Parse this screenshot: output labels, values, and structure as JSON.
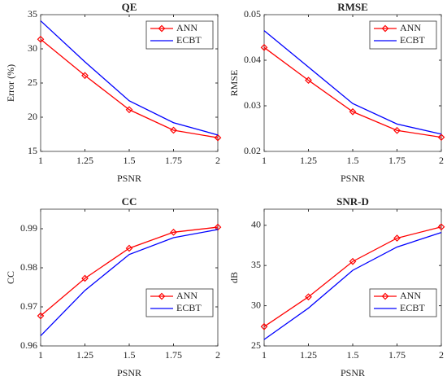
{
  "chart_data": [
    {
      "type": "line",
      "title": "QE",
      "xlabel": "PSNR",
      "ylabel": "Error (%)",
      "x": [
        1,
        1.25,
        1.5,
        1.75,
        2
      ],
      "xlim": [
        1,
        2
      ],
      "xticks": [
        1,
        1.25,
        1.5,
        1.75,
        2
      ],
      "ylim": [
        15,
        35
      ],
      "yticks": [
        15,
        20,
        25,
        30,
        35
      ],
      "legend": "northeast",
      "series": [
        {
          "name": "ANN",
          "color": "#ff0000",
          "marker": "diamond",
          "values": [
            31.4,
            26.1,
            21.1,
            18.1,
            17.0
          ]
        },
        {
          "name": "ECBT",
          "color": "#0000ff",
          "values": [
            34.1,
            28.1,
            22.4,
            19.2,
            17.4
          ]
        }
      ]
    },
    {
      "type": "line",
      "title": "RMSE",
      "xlabel": "PSNR",
      "ylabel": "RMSE",
      "x": [
        1,
        1.25,
        1.5,
        1.75,
        2
      ],
      "xlim": [
        1,
        2
      ],
      "xticks": [
        1,
        1.25,
        1.5,
        1.75,
        2
      ],
      "ylim": [
        0.02,
        0.05
      ],
      "yticks": [
        0.02,
        0.03,
        0.04,
        0.05
      ],
      "legend": "northeast",
      "series": [
        {
          "name": "ANN",
          "color": "#ff0000",
          "marker": "diamond",
          "values": [
            0.0428,
            0.0356,
            0.0287,
            0.0246,
            0.0231
          ]
        },
        {
          "name": "ECBT",
          "color": "#0000ff",
          "values": [
            0.0465,
            0.0385,
            0.0305,
            0.026,
            0.0238
          ]
        }
      ]
    },
    {
      "type": "line",
      "title": "CC",
      "xlabel": "PSNR",
      "ylabel": "CC",
      "x": [
        1,
        1.25,
        1.5,
        1.75,
        2
      ],
      "xlim": [
        1,
        2
      ],
      "xticks": [
        1,
        1.25,
        1.5,
        1.75,
        2
      ],
      "ylim": [
        0.96,
        0.995
      ],
      "yticks": [
        0.96,
        0.97,
        0.98,
        0.99
      ],
      "legend": "southeast",
      "series": [
        {
          "name": "ANN",
          "color": "#ff0000",
          "marker": "diamond",
          "values": [
            0.9677,
            0.9773,
            0.985,
            0.9891,
            0.9904
          ]
        },
        {
          "name": "ECBT",
          "color": "#0000ff",
          "values": [
            0.9626,
            0.9742,
            0.9834,
            0.9877,
            0.9898
          ]
        }
      ]
    },
    {
      "type": "line",
      "title": "SNR-D",
      "xlabel": "PSNR",
      "ylabel": "dB",
      "x": [
        1,
        1.25,
        1.5,
        1.75,
        2
      ],
      "xlim": [
        1,
        2
      ],
      "xticks": [
        1,
        1.25,
        1.5,
        1.75,
        2
      ],
      "ylim": [
        25,
        42
      ],
      "yticks": [
        25,
        30,
        35,
        40
      ],
      "legend": "southeast",
      "series": [
        {
          "name": "ANN",
          "color": "#ff0000",
          "marker": "diamond",
          "values": [
            27.4,
            31.1,
            35.5,
            38.4,
            39.8
          ]
        },
        {
          "name": "ECBT",
          "color": "#0000ff",
          "values": [
            25.8,
            29.7,
            34.4,
            37.3,
            39.1
          ]
        }
      ]
    }
  ]
}
